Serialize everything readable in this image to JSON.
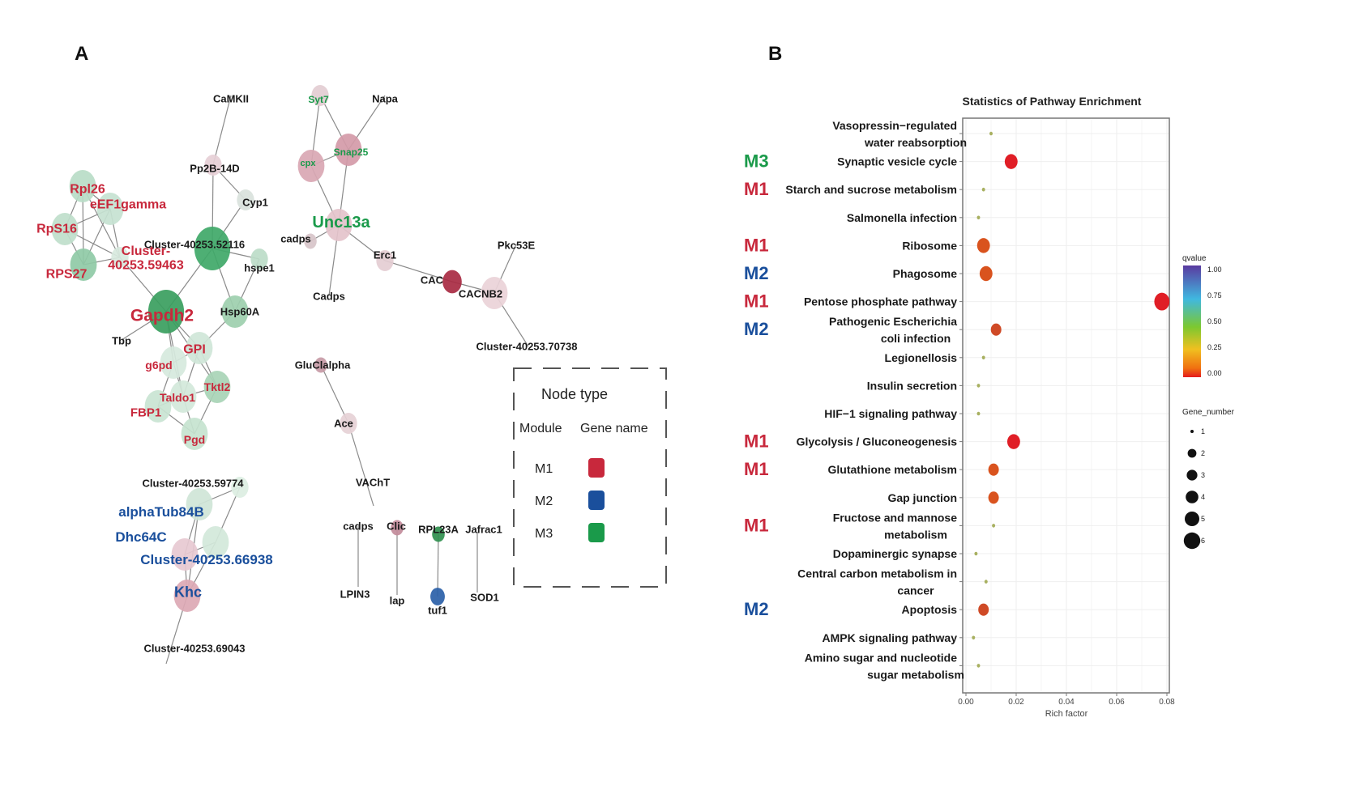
{
  "figure": {
    "panel_a_label": "A",
    "panel_b_label": "B"
  },
  "colors": {
    "M1": "#c8283c",
    "M2": "#1a4f9c",
    "M3": "#1a9a4a",
    "black": "#1a1a1a",
    "edge": "#8a8a8a"
  },
  "network": {
    "nodes": [
      {
        "id": "CaMKII",
        "label": "CaMKII",
        "text_color": "black",
        "fill": "none",
        "size": 0
      },
      {
        "id": "Pp2B-14D",
        "label": "Pp2B-14D",
        "text_color": "black",
        "fill": "#e6cfd6",
        "size": 1
      },
      {
        "id": "Cyp1",
        "label": "Cyp1",
        "text_color": "black",
        "fill": "#d9e2dc",
        "size": 1
      },
      {
        "id": "Cluster-40253.52116",
        "label": "Cluster-40253.52116",
        "text_color": "black",
        "fill": "#3fa868",
        "size": 3
      },
      {
        "id": "hspe1",
        "label": "hspe1",
        "text_color": "black",
        "fill": "#bcdcc8",
        "size": 1
      },
      {
        "id": "Rpl26",
        "label": "Rpl26",
        "text_color": "M1",
        "fill": "#b9dcc7",
        "size": 2
      },
      {
        "id": "eEF1gamma",
        "label": "eEF1gamma",
        "text_color": "M1",
        "fill": "#c6e2d1",
        "size": 2
      },
      {
        "id": "RpS16",
        "label": "RpS16",
        "text_color": "M1",
        "fill": "#bfdecb",
        "size": 2
      },
      {
        "id": "RPS27",
        "label": "RPS27",
        "text_color": "M1",
        "fill": "#8fcaa6",
        "size": 2
      },
      {
        "id": "Cluster-40253.59463",
        "label": "Cluster-\n40253.59463",
        "text_color": "M1",
        "fill": "#d8e9de",
        "size": 1
      },
      {
        "id": "Gapdh2",
        "label": "Gapdh2",
        "text_color": "M1",
        "fill": "#3a9e5e",
        "size": 3
      },
      {
        "id": "Hsp60A",
        "label": "Hsp60A",
        "text_color": "black",
        "fill": "#9dcfae",
        "size": 2
      },
      {
        "id": "Tbp",
        "label": "Tbp",
        "text_color": "black",
        "fill": "none",
        "size": 0
      },
      {
        "id": "GPI",
        "label": "GPI",
        "text_color": "M1",
        "fill": "#cfe6d8",
        "size": 2
      },
      {
        "id": "g6pd",
        "label": "g6pd",
        "text_color": "M1",
        "fill": "#d6e9dd",
        "size": 2
      },
      {
        "id": "Tktl2",
        "label": "Tktl2",
        "text_color": "M1",
        "fill": "#a8d4b6",
        "size": 2
      },
      {
        "id": "Taldo1",
        "label": "Taldo1",
        "text_color": "M1",
        "fill": "#d2e8da",
        "size": 2
      },
      {
        "id": "FBP1",
        "label": "FBP1",
        "text_color": "M1",
        "fill": "#c9e4d3",
        "size": 2
      },
      {
        "id": "Pgd",
        "label": "Pgd",
        "text_color": "M1",
        "fill": "#c5e3cf",
        "size": 2
      },
      {
        "id": "Syt7",
        "label": "Syt7",
        "text_color": "M3",
        "fill": "#e3cdd3",
        "size": 1
      },
      {
        "id": "Napa",
        "label": "Napa",
        "text_color": "black",
        "fill": "none",
        "size": 0
      },
      {
        "id": "cpx",
        "label": "cpx",
        "text_color": "M3",
        "fill": "#d9a7b3",
        "size": 2
      },
      {
        "id": "Snap25",
        "label": "Snap25",
        "text_color": "M3",
        "fill": "#d49aa8",
        "size": 2
      },
      {
        "id": "Unc13a",
        "label": "Unc13a",
        "text_color": "M3",
        "fill": "#e4c3cb",
        "size": 2
      },
      {
        "id": "cadps_a",
        "label": "cadps",
        "text_color": "black",
        "fill": "#d7c4c9",
        "size": 0.5
      },
      {
        "id": "Cadps",
        "label": "Cadps",
        "text_color": "black",
        "fill": "none",
        "size": 0
      },
      {
        "id": "Erc1",
        "label": "Erc1",
        "text_color": "black",
        "fill": "#e4cdd3",
        "size": 1
      },
      {
        "id": "CAC",
        "label": "CAC",
        "text_color": "black",
        "fill": "#a82a42",
        "size": 1.2
      },
      {
        "id": "CACNB2",
        "label": "CACNB2",
        "text_color": "black",
        "fill": "#ead2d8",
        "size": 2
      },
      {
        "id": "Pkc53E",
        "label": "Pkc53E",
        "text_color": "black",
        "fill": "none",
        "size": 0
      },
      {
        "id": "Cluster-40253.70738",
        "label": "Cluster-40253.70738",
        "text_color": "black",
        "fill": "none",
        "size": 0
      },
      {
        "id": "GluClalpha",
        "label": "GluClalpha",
        "text_color": "black",
        "fill": "#c79aa6",
        "size": 0.5
      },
      {
        "id": "Ace",
        "label": "Ace",
        "text_color": "black",
        "fill": "#e6d1d6",
        "size": 1
      },
      {
        "id": "VAChT",
        "label": "VAChT",
        "text_color": "black",
        "fill": "none",
        "size": 0
      },
      {
        "id": "Cluster-40253.59774",
        "label": "Cluster-40253.59774",
        "text_color": "black",
        "fill": "#dceee2",
        "size": 1
      },
      {
        "id": "alphaTub84B",
        "label": "alphaTub84B",
        "text_color": "M2",
        "fill": "#cfe5d7",
        "size": 2
      },
      {
        "id": "Dhc64C",
        "label": "Dhc64C",
        "text_color": "M2",
        "fill": "#e7c9d1",
        "size": 2
      },
      {
        "id": "Cluster-40253.66938",
        "label": "Cluster-40253.66938",
        "text_color": "M2",
        "fill": "#d3e8da",
        "size": 2
      },
      {
        "id": "Khc",
        "label": "Khc",
        "text_color": "M2",
        "fill": "#dca8b4",
        "size": 2
      },
      {
        "id": "Cluster-40253.69043",
        "label": "Cluster-40253.69043",
        "text_color": "black",
        "fill": "none",
        "size": 0
      },
      {
        "id": "cadps_b",
        "label": "cadps",
        "text_color": "black",
        "fill": "none",
        "size": 0
      },
      {
        "id": "LPIN3",
        "label": "LPIN3",
        "text_color": "black",
        "fill": "none",
        "size": 0
      },
      {
        "id": "Clic",
        "label": "Clic",
        "text_color": "black",
        "fill": "#c28b9a",
        "size": 0.5
      },
      {
        "id": "lap",
        "label": "lap",
        "text_color": "black",
        "fill": "none",
        "size": 0
      },
      {
        "id": "RPL23A",
        "label": "RPL23A",
        "text_color": "black",
        "fill": "#2f8f4e",
        "size": 0.5
      },
      {
        "id": "tuf1",
        "label": "tuf1",
        "text_color": "black",
        "fill": "#2a5fa8",
        "size": 0.7
      },
      {
        "id": "Jafrac1",
        "label": "Jafrac1",
        "text_color": "black",
        "fill": "none",
        "size": 0
      },
      {
        "id": "SOD1",
        "label": "SOD1",
        "text_color": "black",
        "fill": "none",
        "size": 0
      }
    ],
    "edges": [
      [
        "CaMKII",
        "Pp2B-14D"
      ],
      [
        "Pp2B-14D",
        "Cluster-40253.52116"
      ],
      [
        "Pp2B-14D",
        "Cyp1"
      ],
      [
        "Cyp1",
        "Cluster-40253.52116"
      ],
      [
        "Cluster-40253.52116",
        "hspe1"
      ],
      [
        "Cluster-40253.52116",
        "Gapdh2"
      ],
      [
        "Cluster-40253.52116",
        "Hsp60A"
      ],
      [
        "hspe1",
        "Hsp60A"
      ],
      [
        "Hsp60A",
        "GPI"
      ],
      [
        "Rpl26",
        "RpS16"
      ],
      [
        "Rpl26",
        "RPS27"
      ],
      [
        "Rpl26",
        "eEF1gamma"
      ],
      [
        "Rpl26",
        "Cluster-40253.59463"
      ],
      [
        "eEF1gamma",
        "RpS16"
      ],
      [
        "eEF1gamma",
        "RPS27"
      ],
      [
        "eEF1gamma",
        "Cluster-40253.59463"
      ],
      [
        "RpS16",
        "RPS27"
      ],
      [
        "RpS16",
        "Cluster-40253.59463"
      ],
      [
        "RPS27",
        "Cluster-40253.59463"
      ],
      [
        "Cluster-40253.59463",
        "Gapdh2"
      ],
      [
        "Gapdh2",
        "Tbp"
      ],
      [
        "Gapdh2",
        "GPI"
      ],
      [
        "Gapdh2",
        "g6pd"
      ],
      [
        "Gapdh2",
        "Taldo1"
      ],
      [
        "Gapdh2",
        "Tktl2"
      ],
      [
        "GPI",
        "g6pd"
      ],
      [
        "GPI",
        "Taldo1"
      ],
      [
        "GPI",
        "Tktl2"
      ],
      [
        "g6pd",
        "Taldo1"
      ],
      [
        "g6pd",
        "FBP1"
      ],
      [
        "Taldo1",
        "Tktl2"
      ],
      [
        "Taldo1",
        "FBP1"
      ],
      [
        "Taldo1",
        "Pgd"
      ],
      [
        "Tktl2",
        "Pgd"
      ],
      [
        "FBP1",
        "Pgd"
      ],
      [
        "Syt7",
        "cpx"
      ],
      [
        "Syt7",
        "Snap25"
      ],
      [
        "Napa",
        "Snap25"
      ],
      [
        "cpx",
        "Snap25"
      ],
      [
        "cpx",
        "Unc13a"
      ],
      [
        "Snap25",
        "Unc13a"
      ],
      [
        "Unc13a",
        "cadps_a"
      ],
      [
        "Unc13a",
        "Cadps"
      ],
      [
        "Unc13a",
        "Erc1"
      ],
      [
        "Erc1",
        "CAC"
      ],
      [
        "CAC",
        "CACNB2"
      ],
      [
        "CACNB2",
        "Pkc53E"
      ],
      [
        "CACNB2",
        "Cluster-40253.70738"
      ],
      [
        "GluClalpha",
        "Ace"
      ],
      [
        "Ace",
        "VAChT"
      ],
      [
        "Cluster-40253.59774",
        "alphaTub84B"
      ],
      [
        "Cluster-40253.59774",
        "Cluster-40253.66938"
      ],
      [
        "alphaTub84B",
        "Dhc64C"
      ],
      [
        "alphaTub84B",
        "Khc"
      ],
      [
        "Dhc64C",
        "Cluster-40253.66938"
      ],
      [
        "Dhc64C",
        "Khc"
      ],
      [
        "Cluster-40253.66938",
        "Khc"
      ],
      [
        "Khc",
        "Cluster-40253.69043"
      ],
      [
        "cadps_b",
        "LPIN3"
      ],
      [
        "Clic",
        "lap"
      ],
      [
        "RPL23A",
        "tuf1"
      ],
      [
        "Jafrac1",
        "SOD1"
      ]
    ]
  },
  "node_legend": {
    "title": "Node type",
    "col_module": "Module",
    "col_gene": "Gene name",
    "rows": [
      {
        "module": "M1",
        "color": "#c8283c"
      },
      {
        "module": "M2",
        "color": "#1a4f9c"
      },
      {
        "module": "M3",
        "color": "#1a9a4a"
      }
    ]
  },
  "chart_data": {
    "type": "scatter",
    "title": "Statistics of Pathway Enrichment",
    "xlabel": "Rich factor",
    "ylabel": "",
    "xlim": [
      0.0,
      0.08
    ],
    "xticks": [
      "0.00",
      "0.02",
      "0.04",
      "0.06",
      "0.08"
    ],
    "xtick_values": [
      0.0,
      0.02,
      0.04,
      0.06,
      0.08
    ],
    "grid": true,
    "categories": [
      "Vasopressin−regulated\nwater reabsorption",
      "Synaptic vesicle cycle",
      "Starch and sucrose metabolism",
      "Salmonella infection",
      "Ribosome",
      "Phagosome",
      "Pentose phosphate pathway",
      "Pathogenic Escherichia\ncoli infection",
      "Legionellosis",
      "Insulin secretion",
      "HIF−1 signaling pathway",
      "Glycolysis / Gluconeogenesis",
      "Glutathione metabolism",
      "Gap junction",
      "Fructose and mannose\nmetabolism",
      "Dopaminergic synapse",
      "Central carbon metabolism in\ncancer",
      "Apoptosis",
      "AMPK signaling pathway",
      "Amino sugar and nucleotide\nsugar metabolism"
    ],
    "rich_factor": [
      0.01,
      0.018,
      0.007,
      0.005,
      0.007,
      0.008,
      0.078,
      0.012,
      0.007,
      0.005,
      0.005,
      0.019,
      0.011,
      0.011,
      0.011,
      0.004,
      0.008,
      0.007,
      0.003,
      0.005
    ],
    "qvalue": [
      0.3,
      0.0,
      0.3,
      0.35,
      0.05,
      0.05,
      0.0,
      0.08,
      0.3,
      0.35,
      0.35,
      0.0,
      0.05,
      0.05,
      0.3,
      0.35,
      0.3,
      0.08,
      0.35,
      0.3
    ],
    "gene_number": [
      1,
      3,
      1,
      1,
      3,
      3,
      4,
      2,
      1,
      1,
      1,
      3,
      2,
      2,
      1,
      1,
      1,
      2,
      1,
      1
    ],
    "module_tags": [
      "",
      "M3",
      "M1",
      "",
      "M1",
      "M2",
      "M1",
      "M2",
      "",
      "",
      "",
      "M1",
      "M1",
      "",
      "M1",
      "",
      "",
      "M2",
      "",
      ""
    ],
    "color_legend": {
      "title": "qvalue",
      "ticks": [
        "1.00",
        "0.75",
        "0.50",
        "0.25",
        "0.00"
      ],
      "range": [
        0.0,
        1.0
      ],
      "position": "right"
    },
    "size_legend": {
      "title": "Gene_number",
      "values": [
        "1",
        "2",
        "3",
        "4",
        "5",
        "6"
      ],
      "position": "right"
    }
  }
}
